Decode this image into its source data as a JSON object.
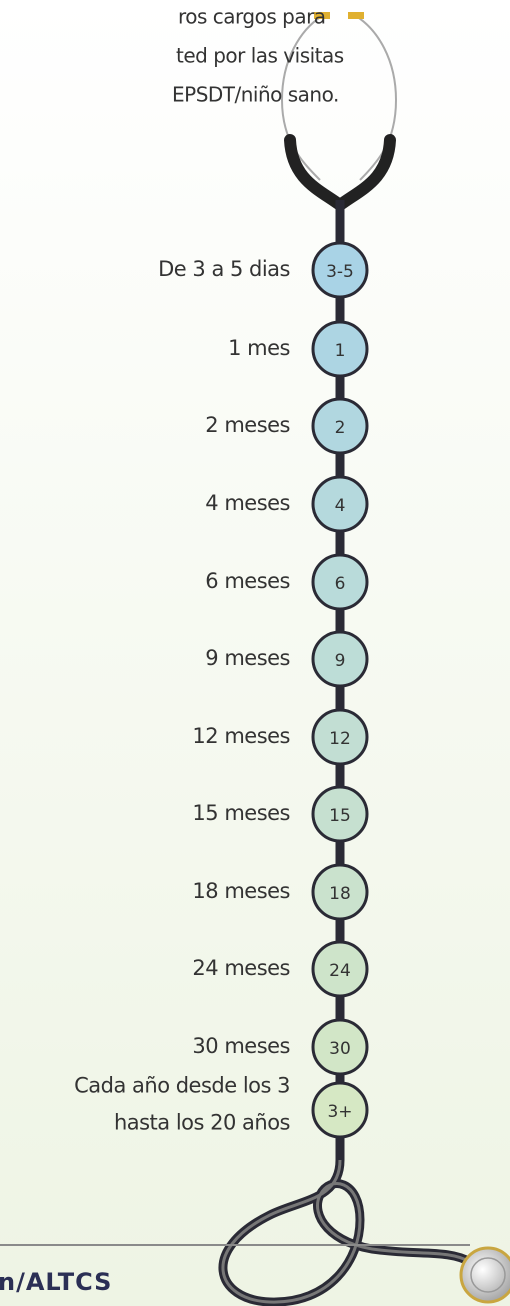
{
  "intro": {
    "lines": [
      "ros cargos para",
      "ted por las visitas",
      "EPSDT/niño sano."
    ]
  },
  "milestones": [
    {
      "age": [
        "De 3 a 5 dias"
      ],
      "badge": "3-5"
    },
    {
      "age": [
        "1 mes"
      ],
      "badge": "1"
    },
    {
      "age": [
        "2 meses"
      ],
      "badge": "2"
    },
    {
      "age": [
        "4 meses"
      ],
      "badge": "4"
    },
    {
      "age": [
        "6 meses"
      ],
      "badge": "6"
    },
    {
      "age": [
        "9 meses"
      ],
      "badge": "9"
    },
    {
      "age": [
        "12 meses"
      ],
      "badge": "12"
    },
    {
      "age": [
        "15 meses"
      ],
      "badge": "15"
    },
    {
      "age": [
        "18 meses"
      ],
      "badge": "18"
    },
    {
      "age": [
        "24 meses"
      ],
      "badge": "24"
    },
    {
      "age": [
        "30 meses"
      ],
      "badge": "30"
    },
    {
      "age": [
        "Cada año desde los 3",
        "hasta los 20 años"
      ],
      "badge": "3+"
    }
  ],
  "footer": "n/ALTCS"
}
